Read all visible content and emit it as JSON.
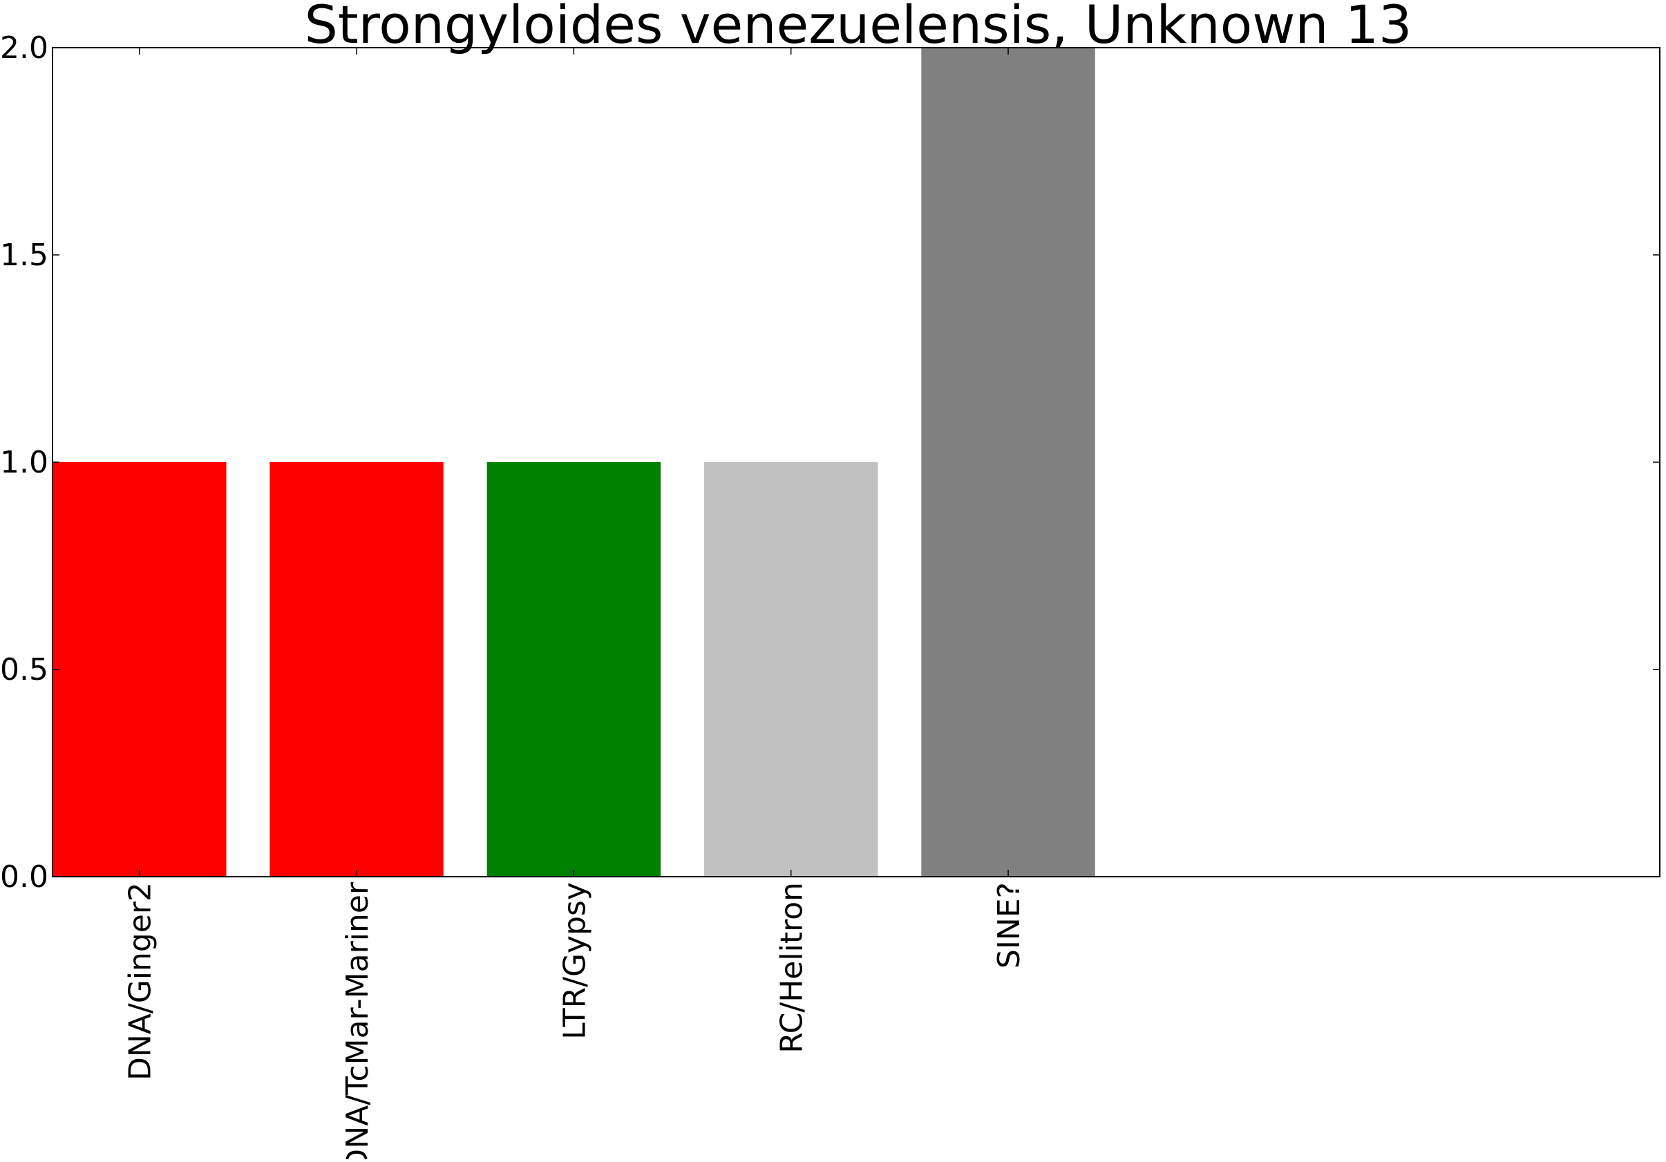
{
  "chart_data": {
    "type": "bar",
    "title": "Strongyloides venezuelensis, Unknown 13",
    "xlabel": "",
    "ylabel": "",
    "categories": [
      "DNA/Ginger2",
      "DNA/TcMar-Mariner",
      "LTR/Gypsy",
      "RC/Helitron",
      "SINE?"
    ],
    "values": [
      1,
      1,
      1,
      1,
      2
    ],
    "colors": [
      "#ff0000",
      "#ff0000",
      "#008000",
      "#c0c0c0",
      "#808080"
    ],
    "ylim": [
      0,
      2
    ],
    "yticks": [
      "0.0",
      "0.5",
      "1.0",
      "1.5",
      "2.0"
    ],
    "grid": false,
    "legend": "none"
  }
}
